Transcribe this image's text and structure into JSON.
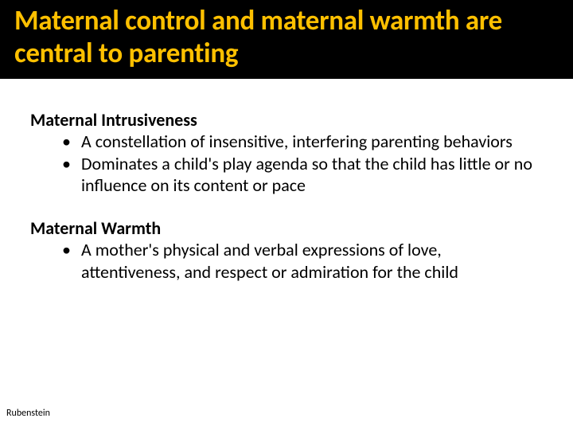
{
  "title": "Maternal control and maternal warmth are central to parenting",
  "title_color": "#ffc000",
  "title_bg": "#000000",
  "title_fontsize": 35,
  "title_fontweight": 700,
  "body_bg": "#ffffff",
  "body_text_color": "#000000",
  "body_fontsize": 22,
  "sections": [
    {
      "heading": "Maternal Intrusiveness",
      "bullets": [
        "A constellation of insensitive, interfering parenting behaviors",
        "Dominates a child's play agenda so that the child has little or no influence on its content or pace"
      ]
    },
    {
      "heading": "Maternal Warmth",
      "bullets": [
        "A mother's physical and verbal expressions of love, attentiveness, and respect or admiration for the child"
      ]
    }
  ],
  "footer": "Rubenstein",
  "footer_fontsize": 12
}
